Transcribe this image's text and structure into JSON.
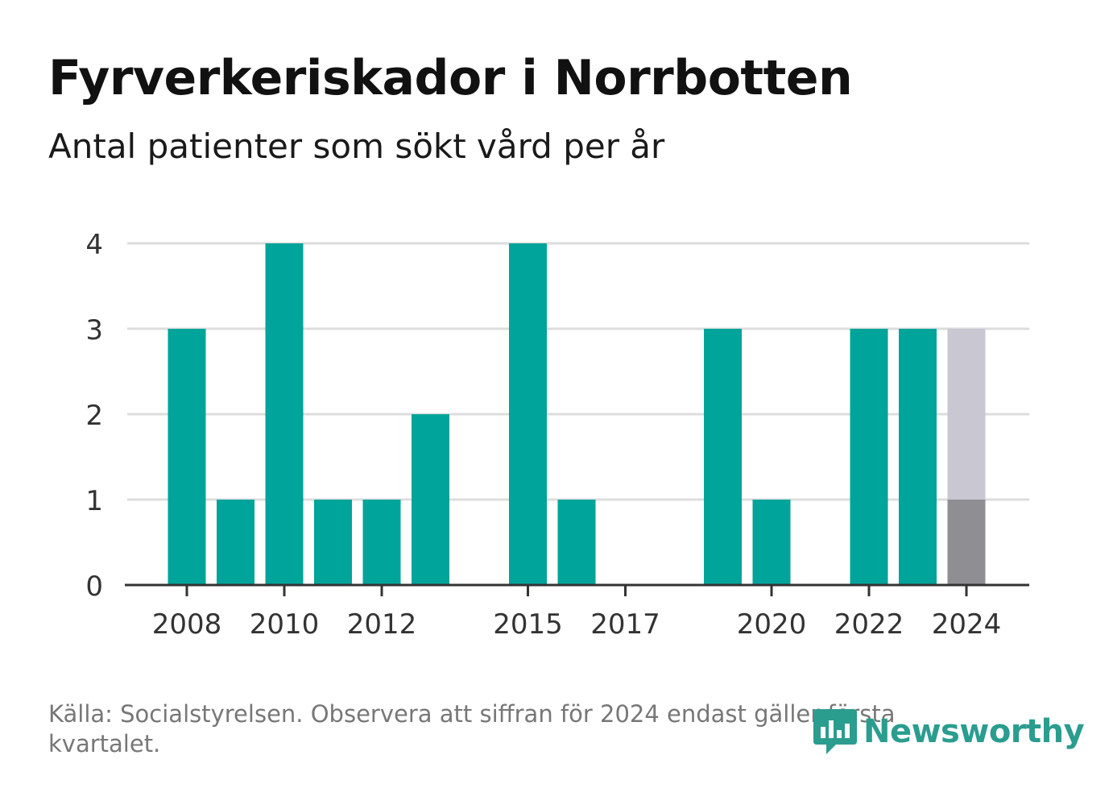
{
  "title": "Fyrverkeriskador i Norrbotten",
  "subtitle": "Antal patienter som sökt vård per år",
  "source": "Källa: Socialstyrelsen. Observera att siffran för 2024 endast gäller första kvartalet.",
  "logo_text": "Newsworthy",
  "colors": {
    "bar": "#00a49a",
    "partial_total": "#c8c7d2",
    "partial_actual": "#8e8e93",
    "grid": "#dddddd",
    "axis": "#333333",
    "logo": "#2a9d8f"
  },
  "chart_data": {
    "type": "bar",
    "title": "Fyrverkeriskador i Norrbotten",
    "subtitle": "Antal patienter som sökt vård per år",
    "xlabel": "",
    "ylabel": "",
    "categories": [
      2008,
      2009,
      2010,
      2011,
      2012,
      2013,
      2014,
      2015,
      2016,
      2017,
      2018,
      2019,
      2020,
      2021,
      2022,
      2023,
      2024
    ],
    "values": [
      3,
      1,
      4,
      1,
      1,
      2,
      0,
      4,
      1,
      0,
      0,
      3,
      1,
      0,
      3,
      3,
      1
    ],
    "highlight": {
      "category": 2024,
      "actual": 1,
      "comparison": 3
    },
    "x_tick_labels": [
      "2008",
      "2010",
      "2012",
      "2015",
      "2017",
      "2020",
      "2022",
      "2024"
    ],
    "y_ticks": [
      "0",
      "1",
      "2",
      "3",
      "4"
    ],
    "ylim": [
      0,
      4
    ],
    "grid": true,
    "legend": "none"
  }
}
